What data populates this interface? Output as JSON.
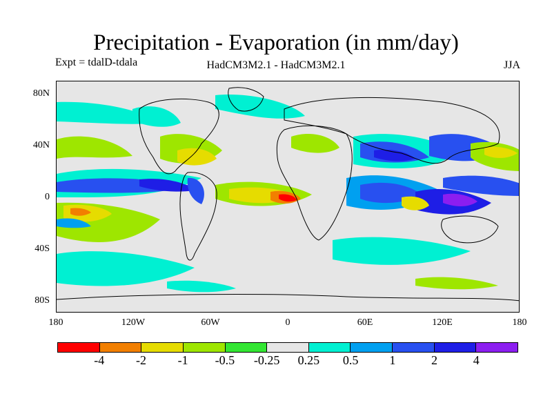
{
  "title": "Precipitation - Evaporation (in mm/day)",
  "experiment": "Expt = tdalD-tdala",
  "models": "HadCM3M2.1 - HadCM3M2.1",
  "season": "JJA",
  "lat_ticks": [
    "80N",
    "40N",
    "0",
    "40S",
    "80S"
  ],
  "lon_ticks": [
    "180",
    "120W",
    "60W",
    "0",
    "60E",
    "120E",
    "180"
  ],
  "colorbar": {
    "labels": [
      "-4",
      "-2",
      "-1",
      "-0.5",
      "-0.25",
      "0.25",
      "0.5",
      "1",
      "2",
      "4"
    ],
    "colors": [
      "#ff0000",
      "#f27f00",
      "#e6dc00",
      "#9ee600",
      "#33e633",
      "#e6e6e6",
      "#00f0d2",
      "#00a0f0",
      "#2850f0",
      "#1e1ee6",
      "#8c1ef0"
    ]
  },
  "palette": {
    "strong_neg": "#ff0000",
    "neg4": "#f27f00",
    "neg2": "#e6dc00",
    "neg1": "#9ee600",
    "neg05": "#33e633",
    "neutral": "#e6e6e6",
    "pos025": "#00f0d2",
    "pos05": "#00a0f0",
    "pos1": "#2850f0",
    "pos2": "#1e1ee6",
    "pos4": "#8c1ef0"
  }
}
